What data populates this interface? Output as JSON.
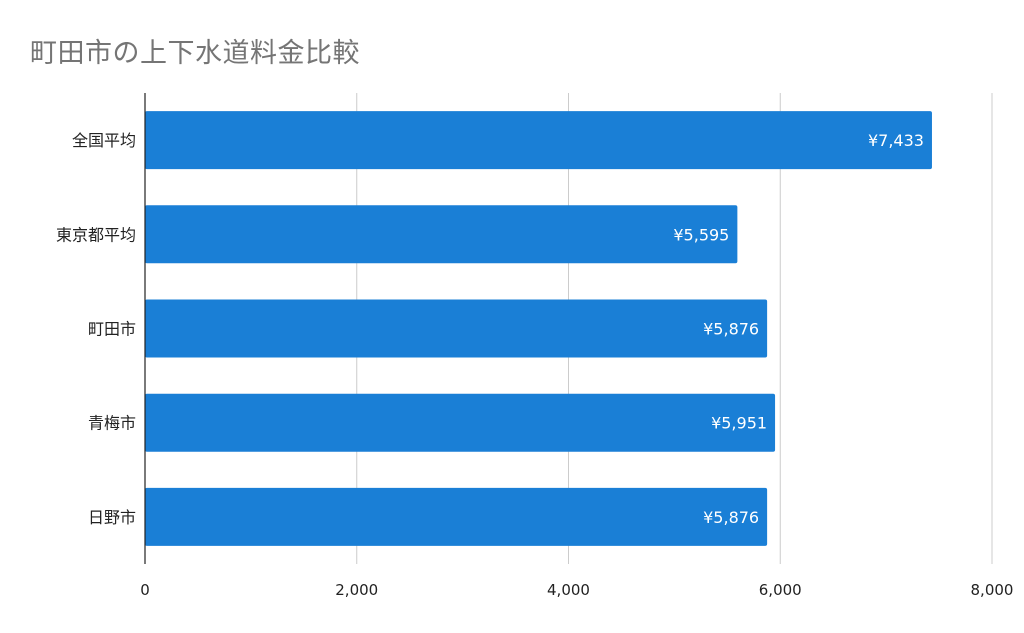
{
  "chart_data": {
    "type": "bar",
    "orientation": "horizontal",
    "title": "町田市の上下水道料金比較",
    "categories": [
      "全国平均",
      "東京都平均",
      "町田市",
      "青梅市",
      "日野市"
    ],
    "values": [
      7433,
      5595,
      5876,
      5951,
      5876
    ],
    "data_labels": [
      "¥7,433",
      "¥5,595",
      "¥5,876",
      "¥5,951",
      "¥5,876"
    ],
    "x_ticks": [
      0,
      2000,
      4000,
      6000,
      8000
    ],
    "x_tick_labels": [
      "0",
      "2,000",
      "4,000",
      "6,000",
      "8,000"
    ],
    "xlim": [
      0,
      8000
    ],
    "xlabel": "",
    "ylabel": "",
    "grid": "vertical",
    "legend": "none",
    "colors": {
      "bar": "#1a7fd6",
      "grid": "#cccccc",
      "axis": "#222222",
      "title": "#757575"
    }
  }
}
